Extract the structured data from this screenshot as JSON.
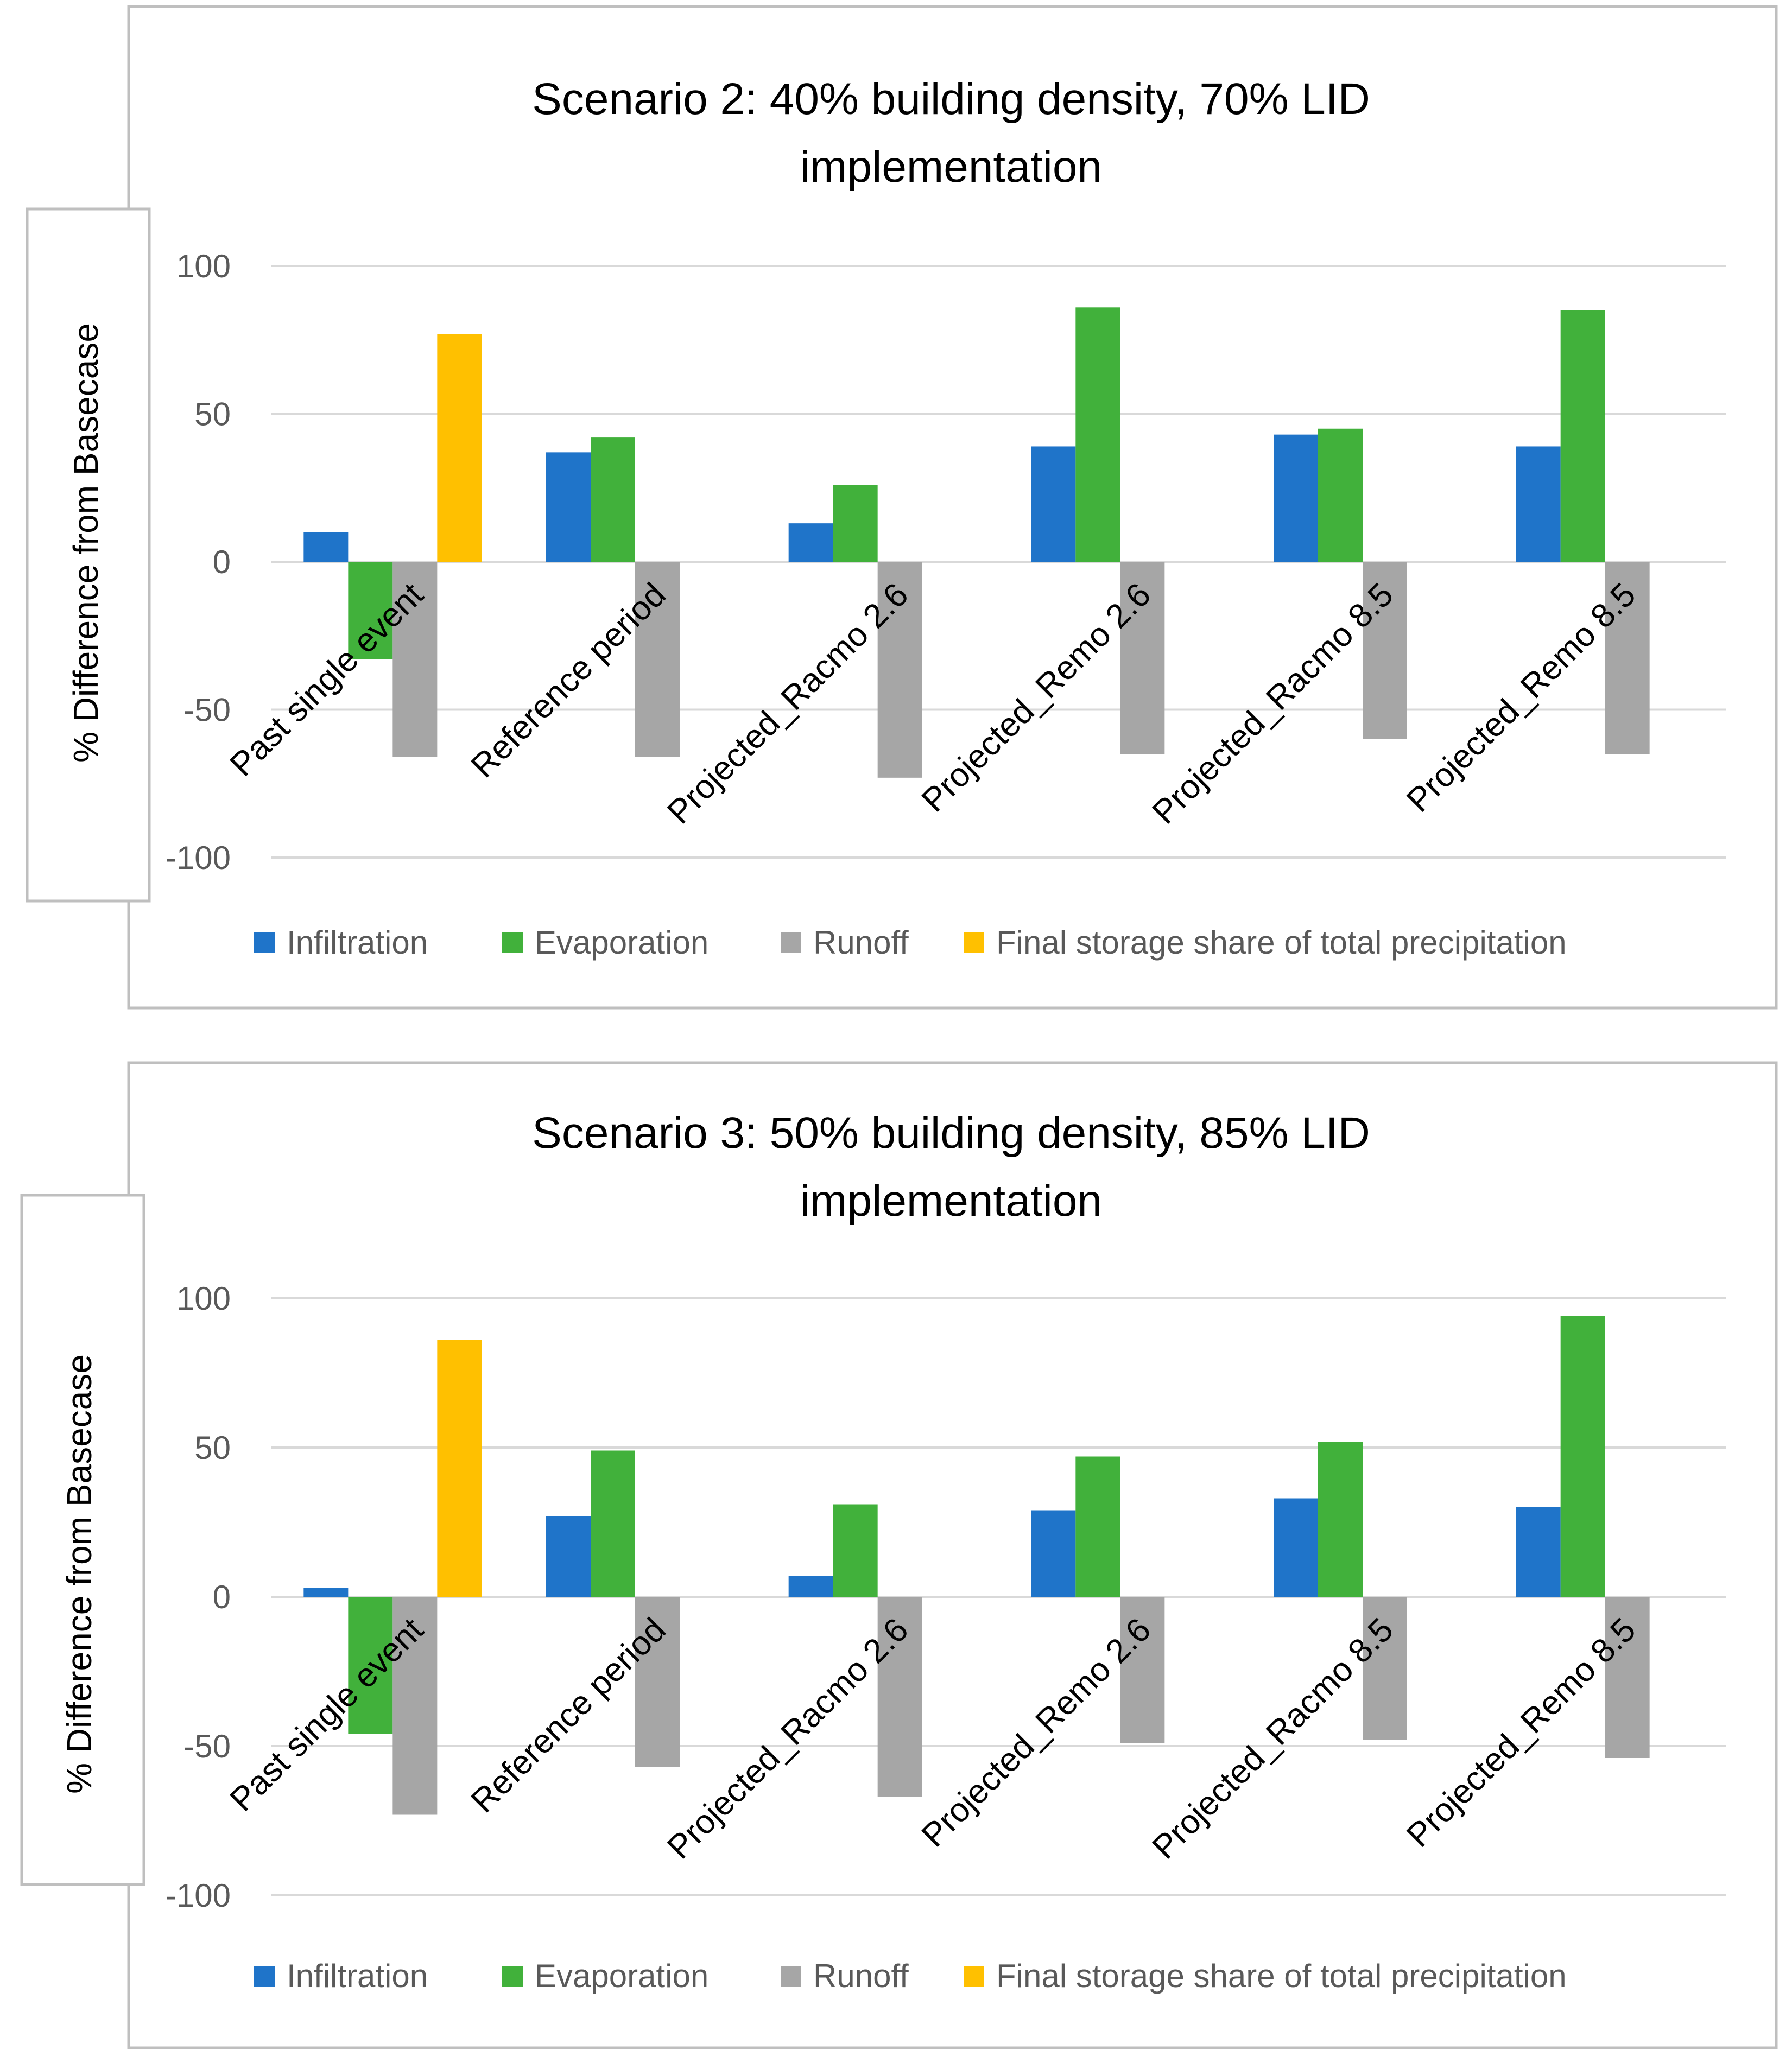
{
  "chart_data": [
    {
      "type": "bar",
      "title_lines": [
        "Scenario 2: 40% building density, 70% LID",
        "implementation"
      ],
      "ylabel": "% Difference from Basecase",
      "xlabel": "",
      "ylim": [
        -100,
        100
      ],
      "yticks": [
        100,
        50,
        0,
        -50,
        -100
      ],
      "grid": true,
      "legend_position": "bottom",
      "categories": [
        "Past single event",
        "Reference period",
        "Projected_Racmo 2.6",
        "Projected_Remo 2.6",
        "Projected_Racmo 8.5",
        "Projected_Remo 8.5"
      ],
      "series": [
        {
          "name": "Infiltration",
          "color": "#1f74c9",
          "values": [
            10,
            37,
            13,
            39,
            43,
            39
          ]
        },
        {
          "name": "Evaporation",
          "color": "#41b13b",
          "values": [
            -33,
            42,
            26,
            86,
            45,
            85
          ]
        },
        {
          "name": "Runoff",
          "color": "#a6a6a6",
          "values": [
            -66,
            -66,
            -73,
            -65,
            -60,
            -65
          ]
        },
        {
          "name": "Final storage share of total precipitation",
          "color": "#ffc000",
          "values": [
            77,
            null,
            null,
            null,
            null,
            null
          ]
        }
      ]
    },
    {
      "type": "bar",
      "title_lines": [
        "Scenario 3: 50% building density, 85% LID",
        "implementation"
      ],
      "ylabel": "% Difference from Basecase",
      "xlabel": "",
      "ylim": [
        -100,
        100
      ],
      "yticks": [
        100,
        50,
        0,
        -50,
        -100
      ],
      "grid": true,
      "legend_position": "bottom",
      "categories": [
        "Past single event",
        "Reference period",
        "Projected_Racmo 2.6",
        "Projected_Remo 2.6",
        "Projected_Racmo 8.5",
        "Projected_Remo 8.5"
      ],
      "series": [
        {
          "name": "Infiltration",
          "color": "#1f74c9",
          "values": [
            3,
            27,
            7,
            29,
            33,
            30
          ]
        },
        {
          "name": "Evaporation",
          "color": "#41b13b",
          "values": [
            -46,
            49,
            31,
            47,
            52,
            94
          ]
        },
        {
          "name": "Runoff",
          "color": "#a6a6a6",
          "values": [
            -73,
            -57,
            -67,
            -49,
            -48,
            -54
          ]
        },
        {
          "name": "Final storage share of total precipitation",
          "color": "#ffc000",
          "values": [
            86,
            null,
            null,
            null,
            null,
            null
          ]
        }
      ]
    }
  ]
}
